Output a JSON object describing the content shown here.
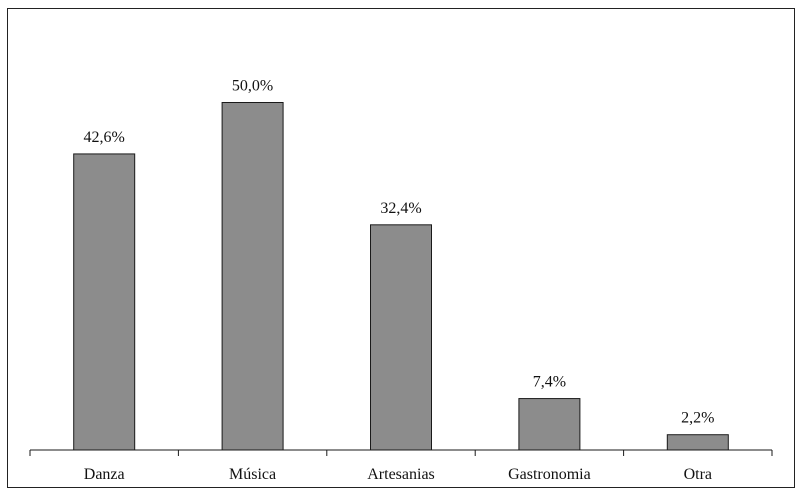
{
  "chart_data": {
    "type": "bar",
    "categories": [
      "Danza",
      "Música",
      "Artesanias",
      "Gastronomia",
      "Otra"
    ],
    "values": [
      42.6,
      50.0,
      32.4,
      7.4,
      2.2
    ],
    "value_labels": [
      "42,6%",
      "50,0%",
      "32,4%",
      "7,4%",
      "2,2%"
    ],
    "title": "",
    "xlabel": "",
    "ylabel": "",
    "ylim": [
      0,
      56
    ],
    "grid": false,
    "legend": "none",
    "colors": {
      "bar_fill": "#8c8c8c",
      "bar_stroke": "#1a1a1a",
      "axis": "#1a1a1a",
      "frame": "#222222",
      "text": "#111111"
    }
  }
}
